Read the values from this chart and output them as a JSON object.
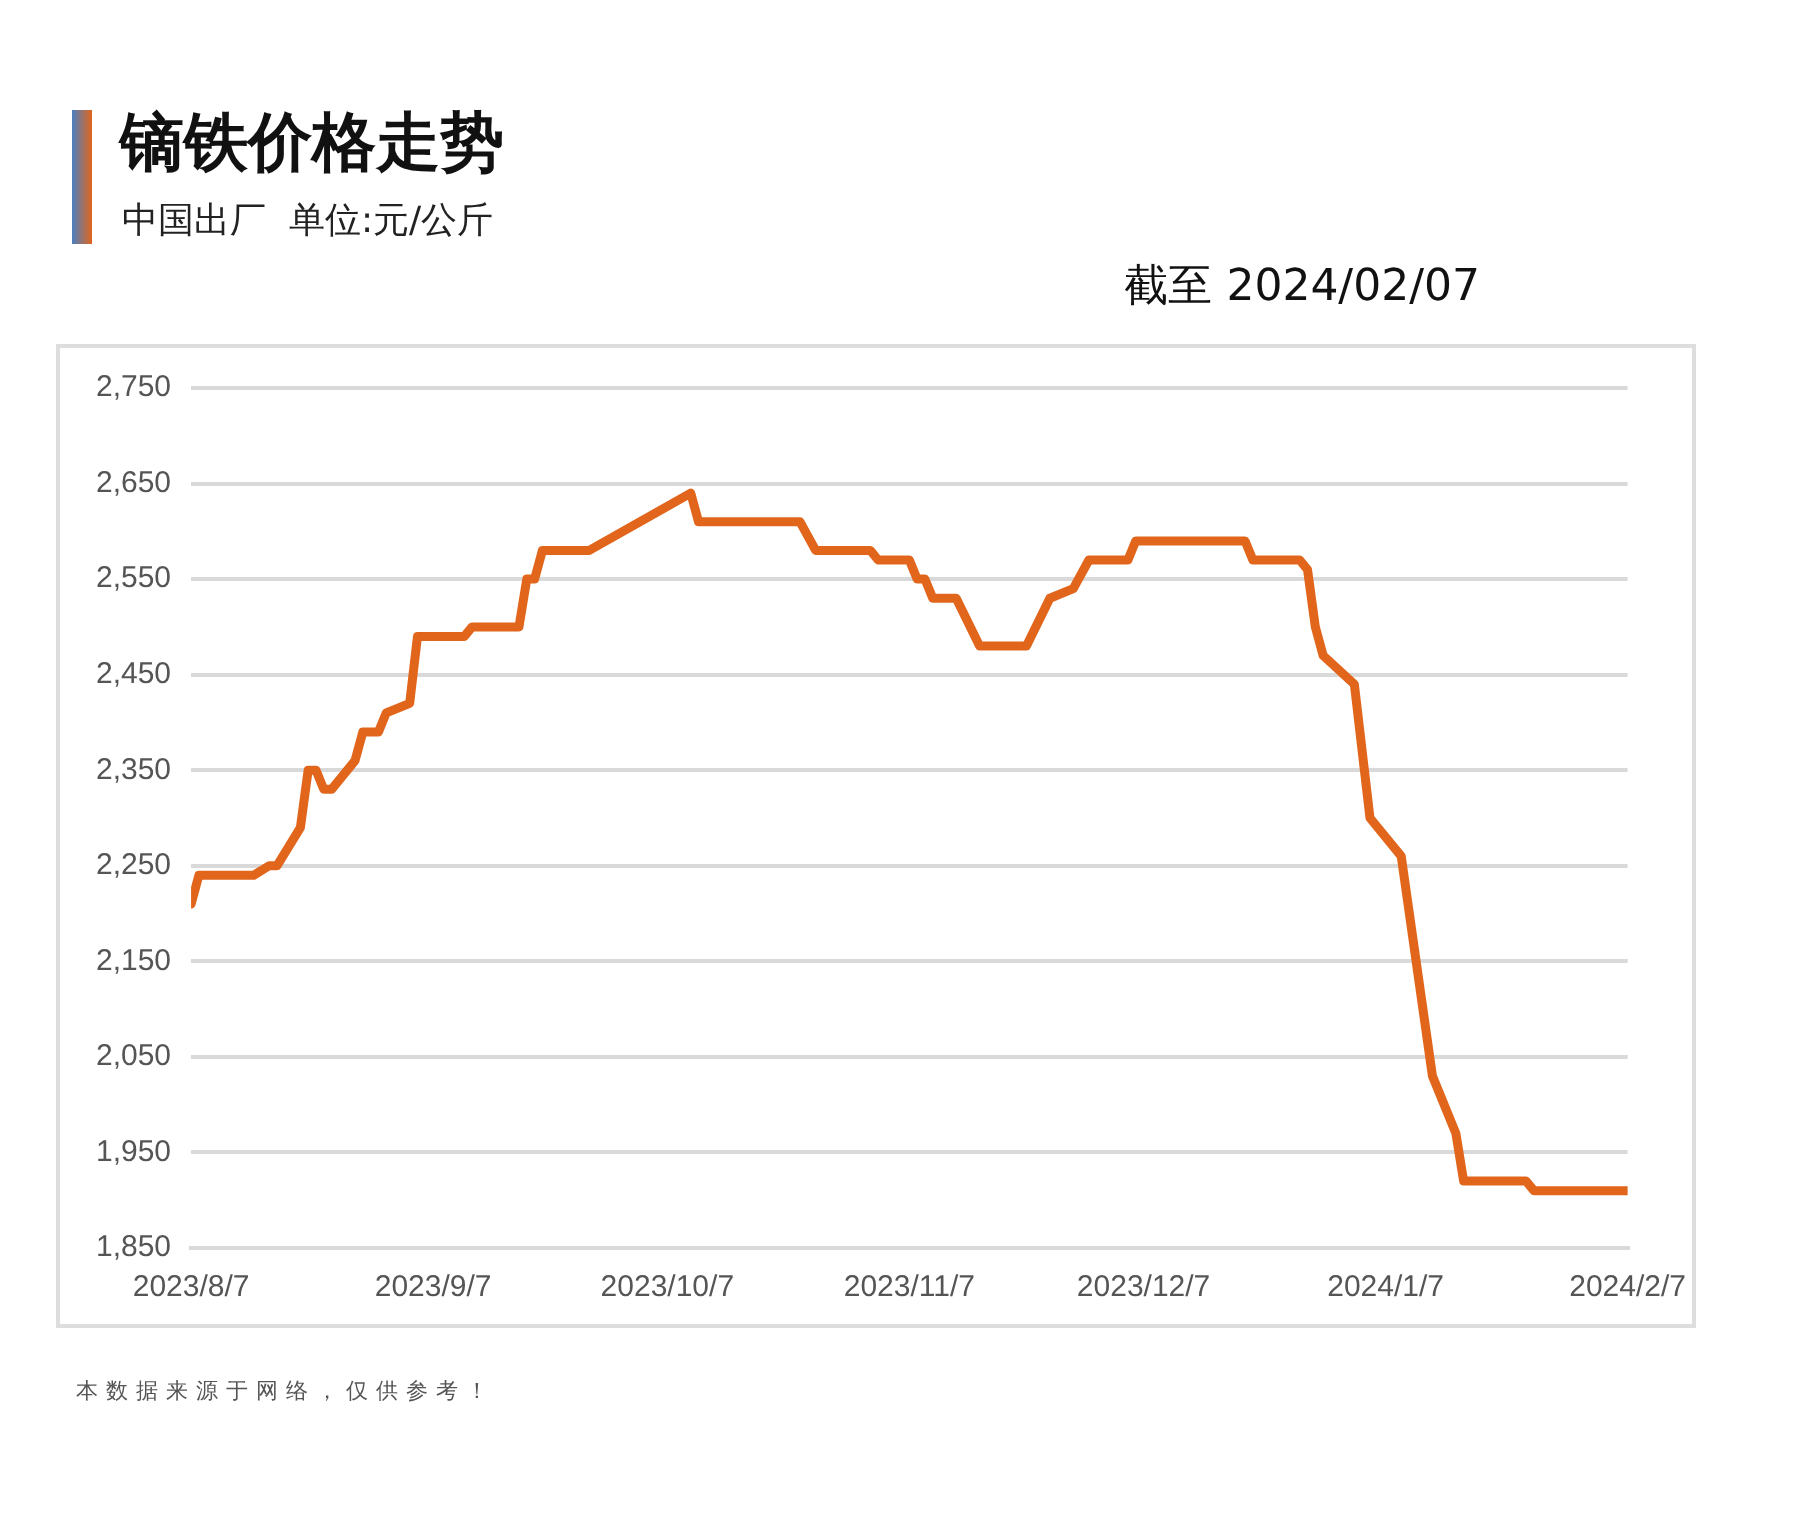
{
  "chart_data": {
    "type": "line",
    "title": "镝铁价格走势",
    "subtitle": "中国出厂  单位:元/公斤",
    "annotations": [
      "截至 2024/02/07",
      "本数据来源于网络，仅供参考！"
    ],
    "x": [
      "2023-08-07",
      "2023-08-08",
      "2023-08-15",
      "2023-08-17",
      "2023-08-18",
      "2023-08-21",
      "2023-08-22",
      "2023-08-23",
      "2023-08-24",
      "2023-08-25",
      "2023-08-28",
      "2023-08-29",
      "2023-08-31",
      "2023-09-01",
      "2023-09-04",
      "2023-09-05",
      "2023-09-11",
      "2023-09-12",
      "2023-09-18",
      "2023-09-19",
      "2023-09-20",
      "2023-09-21",
      "2023-09-27",
      "2023-10-10",
      "2023-10-11",
      "2023-10-24",
      "2023-10-26",
      "2023-11-02",
      "2023-11-03",
      "2023-11-07",
      "2023-11-08",
      "2023-11-09",
      "2023-11-10",
      "2023-11-13",
      "2023-11-16",
      "2023-11-22",
      "2023-11-25",
      "2023-11-28",
      "2023-11-30",
      "2023-12-05",
      "2023-12-06",
      "2023-12-20",
      "2023-12-21",
      "2023-12-27",
      "2023-12-28",
      "2023-12-29",
      "2023-12-30",
      "2024-01-03",
      "2024-01-05",
      "2024-01-09",
      "2024-01-13",
      "2024-01-16",
      "2024-01-17",
      "2024-01-25",
      "2024-01-26",
      "2024-02-07"
    ],
    "series": [
      {
        "color": "#e2651c",
        "values": [
          2210,
          2240,
          2240,
          2250,
          2250,
          2290,
          2350,
          2350,
          2330,
          2330,
          2360,
          2390,
          2390,
          2410,
          2420,
          2490,
          2490,
          2500,
          2500,
          2550,
          2550,
          2580,
          2580,
          2640,
          2610,
          2610,
          2580,
          2580,
          2570,
          2570,
          2550,
          2550,
          2530,
          2530,
          2480,
          2480,
          2530,
          2540,
          2570,
          2570,
          2590,
          2590,
          2570,
          2570,
          2560,
          2500,
          2470,
          2440,
          2300,
          2260,
          2030,
          1970,
          1920,
          1920,
          1910,
          1910
        ]
      }
    ],
    "xlim": [
      "2023-08-07",
      "2024-02-07"
    ],
    "xticks": [
      {
        "value": "2023-08-07",
        "label": "2023/8/7"
      },
      {
        "value": "2023-09-07",
        "label": "2023/9/7"
      },
      {
        "value": "2023-10-07",
        "label": "2023/10/7"
      },
      {
        "value": "2023-11-07",
        "label": "2023/11/7"
      },
      {
        "value": "2023-12-07",
        "label": "2023/12/7"
      },
      {
        "value": "2024-01-07",
        "label": "2024/1/7"
      },
      {
        "value": "2024-02-07",
        "label": "2024/2/7"
      }
    ],
    "ylim": [
      1850,
      2750
    ],
    "yticks": [
      {
        "value": 1850,
        "label": "1,850"
      },
      {
        "value": 1950,
        "label": "1,950"
      },
      {
        "value": 2050,
        "label": "2,050"
      },
      {
        "value": 2150,
        "label": "2,150"
      },
      {
        "value": 2250,
        "label": "2,250"
      },
      {
        "value": 2350,
        "label": "2,350"
      },
      {
        "value": 2450,
        "label": "2,450"
      },
      {
        "value": 2550,
        "label": "2,550"
      },
      {
        "value": 2650,
        "label": "2,650"
      },
      {
        "value": 2750,
        "label": "2,750"
      }
    ],
    "grid": "y",
    "legend": false,
    "marker": "none",
    "line_style": "solid"
  }
}
